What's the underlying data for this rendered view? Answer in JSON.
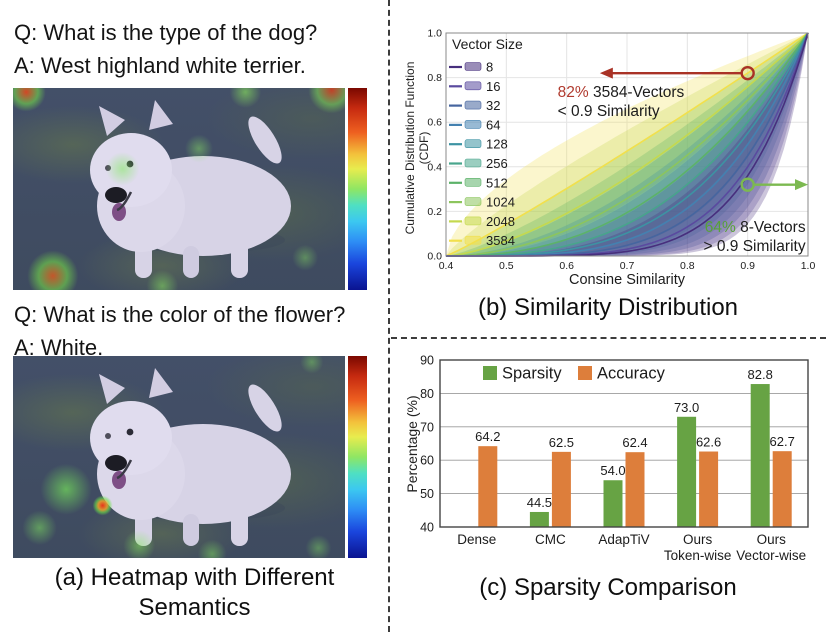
{
  "panel_a": {
    "qa1": {
      "question": "Q: What is the type of the dog?",
      "answer": "A: West highland white terrier."
    },
    "qa2": {
      "question": "Q: What is the color of the flower?",
      "answer": "A: White."
    },
    "caption": {
      "line1": "(a) Heatmap with Different",
      "line2": "Semantics"
    }
  },
  "panel_b": {
    "caption": "(b) Similarity Distribution"
  },
  "panel_c": {
    "caption": "(c) Sparsity Comparison"
  },
  "chart_data": [
    {
      "id": "similarity_distribution",
      "type": "line",
      "xlabel": "Consine Similarity",
      "ylabel_line1": "Cumulative Distribution Function",
      "ylabel_line2": "(CDF)",
      "xlim": [
        0.4,
        1.0
      ],
      "ylim": [
        0.0,
        1.0
      ],
      "xticks": [
        0.4,
        0.5,
        0.6,
        0.7,
        0.8,
        0.9,
        1.0
      ],
      "yticks": [
        0.0,
        0.2,
        0.4,
        0.6,
        0.8,
        1.0
      ],
      "grid": true,
      "legend_position": "upper left",
      "legend_title": "Vector Size",
      "series": [
        {
          "name": "8",
          "color": "#472f7d",
          "cdf_at_0_9": 0.36
        },
        {
          "name": "16",
          "color": "#5a4a9f",
          "cdf_at_0_9": 0.4
        },
        {
          "name": "32",
          "color": "#46659f",
          "cdf_at_0_9": 0.45
        },
        {
          "name": "64",
          "color": "#4481b0",
          "cdf_at_0_9": 0.5
        },
        {
          "name": "128",
          "color": "#3d93a3",
          "cdf_at_0_9": 0.55
        },
        {
          "name": "256",
          "color": "#48a58c",
          "cdf_at_0_9": 0.6
        },
        {
          "name": "512",
          "color": "#5cb269",
          "cdf_at_0_9": 0.65
        },
        {
          "name": "1024",
          "color": "#8cc55d",
          "cdf_at_0_9": 0.7
        },
        {
          "name": "2048",
          "color": "#c4d94e",
          "cdf_at_0_9": 0.76
        },
        {
          "name": "3584",
          "color": "#f2e04c",
          "cdf_at_0_9": 0.82
        }
      ],
      "annotations": [
        {
          "value": "82%",
          "label": "3584-Vectors",
          "line2": "< 0.9 Similarity",
          "value_color": "#b03a2e",
          "arrow_color": "#a93226",
          "marker_x": 0.9,
          "marker_y": 0.82,
          "dir": "left",
          "tip_x": 0.655,
          "label_x": 0.585,
          "label_y": 0.713,
          "anchor": "start"
        },
        {
          "value": "64%",
          "label": "8-Vectors",
          "line2": "> 0.9 Similarity",
          "value_color": "#58a139",
          "arrow_color": "#7cb950",
          "marker_x": 0.9,
          "marker_y": 0.32,
          "dir": "right",
          "tip_x": 1.0,
          "label_x": 0.996,
          "label_y": 0.108,
          "anchor": "end"
        }
      ]
    },
    {
      "id": "sparsity_comparison",
      "type": "bar",
      "ylabel": "Percentage (%)",
      "ylim": [
        40,
        90
      ],
      "yticks": [
        40,
        50,
        60,
        70,
        80,
        90
      ],
      "categories": [
        [
          "Dense"
        ],
        [
          "CMC"
        ],
        [
          "AdapTiV"
        ],
        [
          "Ours",
          "Token-wise"
        ],
        [
          "Ours",
          "Vector-wise"
        ]
      ],
      "series": [
        {
          "name": "Sparsity",
          "color": "#67a344",
          "values": [
            0.0,
            44.5,
            54.0,
            73.0,
            82.8
          ]
        },
        {
          "name": "Accuracy",
          "color": "#dd7e3b",
          "values": [
            64.2,
            62.5,
            62.4,
            62.6,
            62.7
          ]
        }
      ]
    }
  ]
}
